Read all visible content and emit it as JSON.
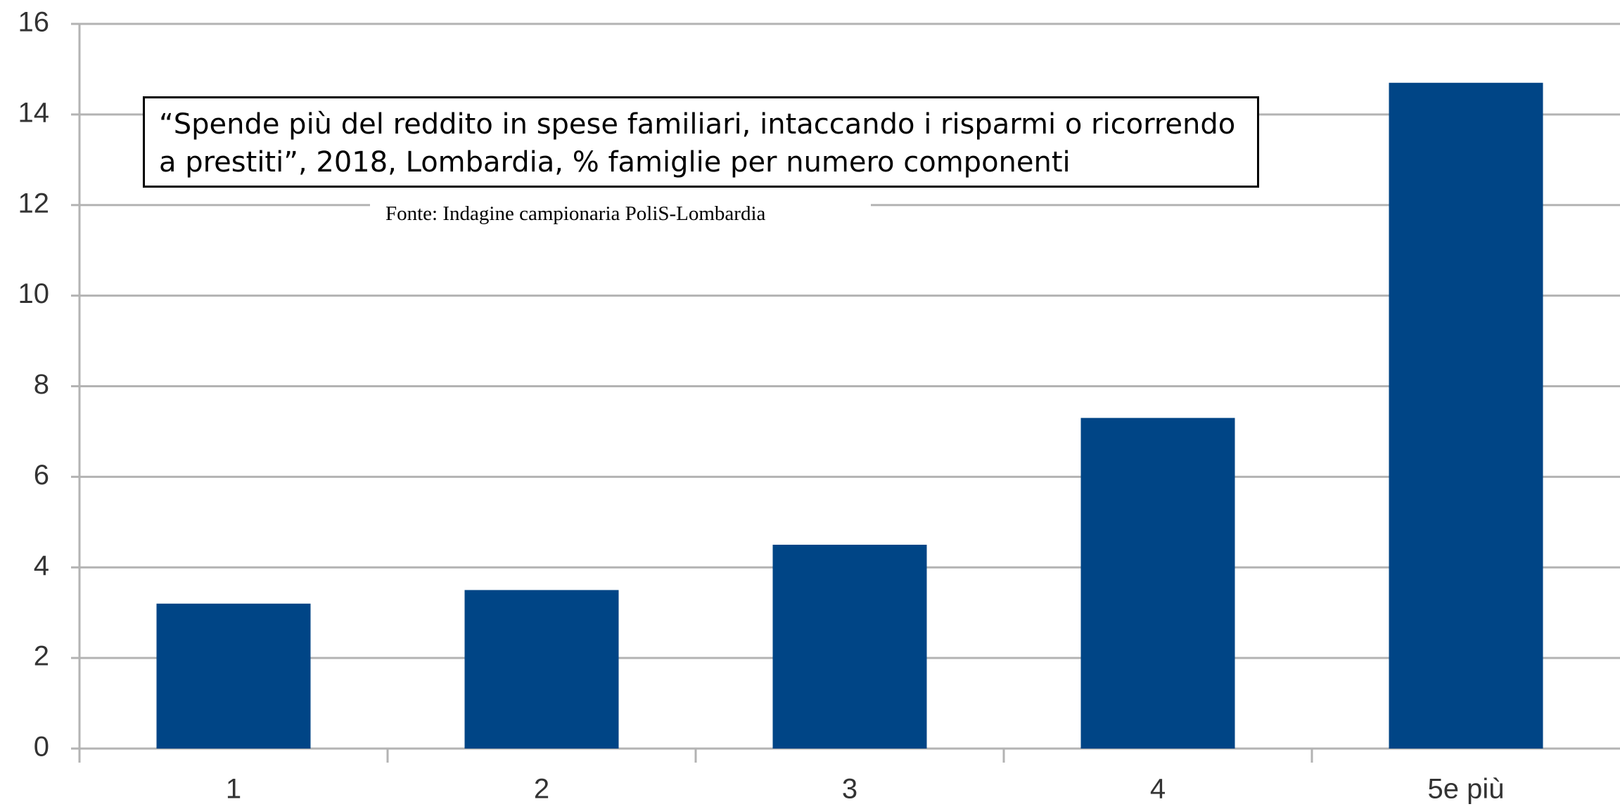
{
  "chart_data": {
    "type": "bar",
    "title": "“Spende più del reddito in spese familiari, intaccando i risparmi o ricorrendo a prestiti”, 2018, Lombardia, % famiglie per numero componenti",
    "source": "Fonte: Indagine campionaria PoliS-Lombardia",
    "categories": [
      "1",
      "2",
      "3",
      "4",
      "5e più"
    ],
    "values": [
      3.2,
      3.5,
      4.5,
      7.3,
      14.7
    ],
    "color": "#004586",
    "ylim": [
      0,
      16
    ],
    "yticks": [
      0,
      2,
      4,
      6,
      8,
      10,
      12,
      14,
      16
    ],
    "grid": true
  }
}
